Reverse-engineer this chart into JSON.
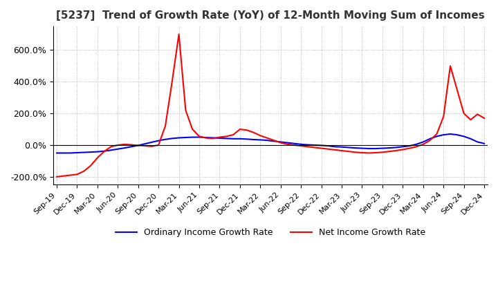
{
  "title": "[5237]  Trend of Growth Rate (YoY) of 12-Month Moving Sum of Incomes",
  "title_fontsize": 11,
  "legend_labels": [
    "Ordinary Income Growth Rate",
    "Net Income Growth Rate"
  ],
  "line_colors": [
    "blue",
    "red"
  ],
  "ylim": [
    -250,
    750
  ],
  "yticks": [
    -200,
    0,
    200,
    400,
    600
  ],
  "background_color": "#ffffff",
  "grid_color": "#aaaaaa",
  "ordinary_income_gr": [
    -50,
    -50,
    -50,
    -48,
    -46,
    -44,
    -42,
    -38,
    -32,
    -25,
    -18,
    -10,
    -2,
    8,
    18,
    28,
    36,
    42,
    46,
    48,
    50,
    50,
    48,
    46,
    44,
    42,
    40,
    40,
    38,
    35,
    33,
    30,
    25,
    20,
    15,
    10,
    5,
    2,
    0,
    -2,
    -5,
    -10,
    -12,
    -15,
    -18,
    -20,
    -22,
    -22,
    -20,
    -18,
    -15,
    -10,
    -5,
    5,
    20,
    40,
    55,
    65,
    70,
    65,
    55,
    40,
    20,
    10
  ],
  "net_income_gr": [
    -200,
    -195,
    -190,
    -185,
    -165,
    -130,
    -80,
    -40,
    -10,
    0,
    5,
    2,
    -2,
    -5,
    -8,
    0,
    120,
    400,
    700,
    220,
    100,
    55,
    45,
    42,
    50,
    55,
    65,
    100,
    95,
    80,
    60,
    45,
    30,
    15,
    5,
    0,
    -5,
    -10,
    -15,
    -20,
    -25,
    -30,
    -35,
    -40,
    -45,
    -48,
    -50,
    -48,
    -45,
    -40,
    -35,
    -28,
    -20,
    -10,
    5,
    30,
    70,
    180,
    500,
    350,
    200,
    160,
    195,
    170
  ],
  "xtick_labels": [
    "Sep-19",
    "Dec-19",
    "Mar-20",
    "Jun-20",
    "Sep-20",
    "Dec-20",
    "Mar-21",
    "Jun-21",
    "Sep-21",
    "Dec-21",
    "Mar-22",
    "Jun-22",
    "Sep-22",
    "Dec-22",
    "Mar-23",
    "Jun-23",
    "Sep-23",
    "Dec-23",
    "Mar-24",
    "Jun-24",
    "Sep-24",
    "Dec-24"
  ],
  "xtick_positions": [
    0,
    3,
    6,
    9,
    12,
    15,
    18,
    21,
    24,
    27,
    30,
    33,
    36,
    39,
    42,
    45,
    48,
    51,
    54,
    57,
    60,
    63
  ],
  "n_points": 64
}
